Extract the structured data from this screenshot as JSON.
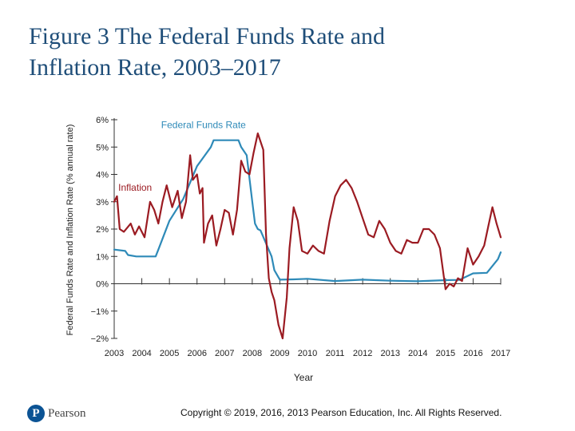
{
  "slide": {
    "title_line1": "Figure 3 The Federal Funds Rate and",
    "title_line2": "Inflation Rate, 2003–2017",
    "copyright": "Copyright © 2019, 2016, 2013 Pearson Education, Inc. All Rights Reserved.",
    "logo_text": "Pearson",
    "logo_letter": "P"
  },
  "colors": {
    "title": "#1f4e79",
    "fed_funds": "#2e8ab8",
    "inflation": "#9b1b22",
    "axis": "#333333"
  },
  "chart_data": {
    "type": "line",
    "title": "",
    "xlabel": "Year",
    "ylabel": "Federal Funds Rate and Inflation Rate (% annual rate)",
    "xlim": [
      2003,
      2017
    ],
    "ylim": [
      -2,
      6
    ],
    "x_ticks": [
      2003,
      2004,
      2005,
      2006,
      2007,
      2008,
      2009,
      2010,
      2011,
      2012,
      2013,
      2014,
      2015,
      2016,
      2017
    ],
    "x_tick_labels": [
      "2003",
      "2004",
      "2005",
      "2006",
      "2007",
      "2008",
      "2009",
      "2010",
      "2011",
      "2012",
      "2013",
      "2014",
      "2015",
      "2016",
      "2017"
    ],
    "y_ticks": [
      -2,
      -1,
      0,
      1,
      2,
      3,
      4,
      5,
      6
    ],
    "y_tick_labels": [
      "−2%",
      "−1%",
      "0%",
      "1%",
      "2%",
      "3%",
      "4%",
      "5%",
      "6%"
    ],
    "series": [
      {
        "name": "Federal Funds Rate",
        "label_at": [
          2004.7,
          5.7
        ],
        "x": [
          2003.0,
          2003.4,
          2003.5,
          2003.8,
          2004.5,
          2004.6,
          2005.0,
          2005.5,
          2006.0,
          2006.5,
          2006.6,
          2007.5,
          2007.6,
          2007.8,
          2008.0,
          2008.1,
          2008.2,
          2008.3,
          2008.7,
          2008.8,
          2009.0,
          2009.5,
          2010.0,
          2011.0,
          2012.0,
          2013.0,
          2014.0,
          2015.0,
          2015.5,
          2016.0,
          2016.5,
          2016.9,
          2017.0
        ],
        "values": [
          1.25,
          1.2,
          1.05,
          1.0,
          1.0,
          1.25,
          2.3,
          3.1,
          4.3,
          5.0,
          5.25,
          5.25,
          5.0,
          4.7,
          3.0,
          2.2,
          2.0,
          1.95,
          1.0,
          0.5,
          0.15,
          0.16,
          0.18,
          0.1,
          0.15,
          0.11,
          0.09,
          0.13,
          0.14,
          0.38,
          0.4,
          0.9,
          1.15
        ]
      },
      {
        "name": "Inflation",
        "label_at": [
          2003.15,
          3.4
        ],
        "x": [
          2003.0,
          2003.1,
          2003.2,
          2003.35,
          2003.6,
          2003.75,
          2003.9,
          2004.1,
          2004.3,
          2004.45,
          2004.6,
          2004.75,
          2004.9,
          2005.1,
          2005.3,
          2005.45,
          2005.6,
          2005.75,
          2005.85,
          2006.0,
          2006.1,
          2006.2,
          2006.25,
          2006.4,
          2006.55,
          2006.7,
          2006.85,
          2007.0,
          2007.15,
          2007.3,
          2007.45,
          2007.6,
          2007.75,
          2007.9,
          2008.05,
          2008.2,
          2008.4,
          2008.5,
          2008.6,
          2008.7,
          2008.8,
          2008.95,
          2009.1,
          2009.25,
          2009.35,
          2009.5,
          2009.65,
          2009.8,
          2010.0,
          2010.2,
          2010.4,
          2010.6,
          2010.8,
          2011.0,
          2011.2,
          2011.4,
          2011.6,
          2011.8,
          2012.0,
          2012.2,
          2012.4,
          2012.6,
          2012.8,
          2013.0,
          2013.2,
          2013.4,
          2013.6,
          2013.8,
          2014.0,
          2014.2,
          2014.4,
          2014.6,
          2014.8,
          2015.0,
          2015.15,
          2015.3,
          2015.45,
          2015.6,
          2015.8,
          2016.0,
          2016.2,
          2016.4,
          2016.55,
          2016.7,
          2016.85,
          2017.0
        ],
        "values": [
          3.0,
          3.2,
          2.0,
          1.9,
          2.2,
          1.8,
          2.1,
          1.7,
          3.0,
          2.7,
          2.2,
          3.0,
          3.6,
          2.8,
          3.4,
          2.4,
          3.0,
          4.7,
          3.8,
          4.0,
          3.3,
          3.5,
          1.5,
          2.2,
          2.5,
          1.4,
          2.0,
          2.7,
          2.6,
          1.8,
          2.7,
          4.5,
          4.1,
          4.0,
          4.8,
          5.5,
          4.9,
          1.8,
          0.2,
          -0.3,
          -0.6,
          -1.5,
          -2.0,
          -0.5,
          1.3,
          2.8,
          2.3,
          1.2,
          1.1,
          1.4,
          1.2,
          1.1,
          2.3,
          3.2,
          3.6,
          3.8,
          3.5,
          3.0,
          2.4,
          1.8,
          1.7,
          2.3,
          2.0,
          1.5,
          1.2,
          1.1,
          1.6,
          1.5,
          1.5,
          2.0,
          2.0,
          1.8,
          1.3,
          -0.2,
          0.0,
          -0.1,
          0.2,
          0.1,
          1.3,
          0.7,
          1.0,
          1.4,
          2.1,
          2.8,
          2.2,
          1.7
        ]
      }
    ]
  }
}
